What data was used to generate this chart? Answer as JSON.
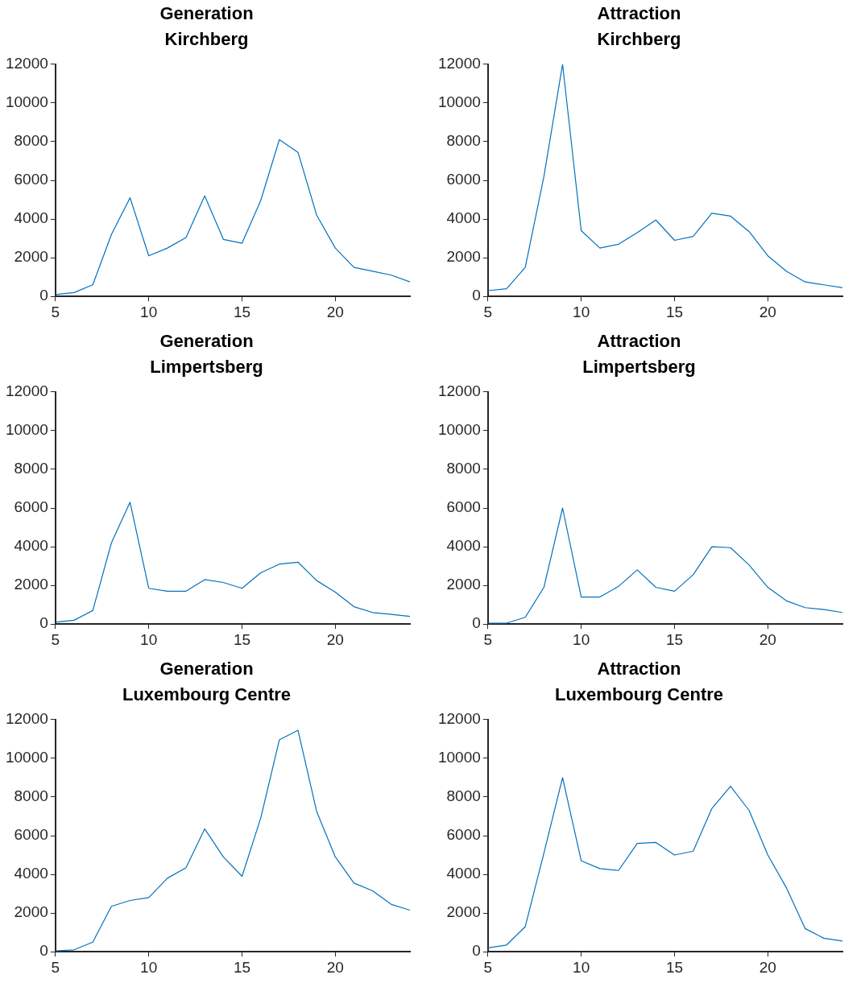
{
  "chart_data": [
    {
      "type": "line",
      "title": "Generation\nKirchberg",
      "x": [
        5,
        6,
        7,
        8,
        9,
        10,
        11,
        12,
        13,
        14,
        15,
        16,
        17,
        18,
        19,
        20,
        21,
        22,
        23,
        24
      ],
      "series": [
        {
          "color": "#0072bd",
          "values": [
            100,
            200,
            600,
            3200,
            5100,
            2100,
            2500,
            3050,
            5200,
            2950,
            2750,
            4950,
            8100,
            7450,
            4200,
            2500,
            1500,
            1300,
            1100,
            750
          ]
        }
      ],
      "xlim": [
        5,
        24
      ],
      "xticks": [
        5,
        10,
        15,
        20
      ],
      "ylim": [
        0,
        12000
      ],
      "yticks": [
        0,
        2000,
        4000,
        6000,
        8000,
        10000,
        12000
      ],
      "grid": false,
      "legend": false,
      "marker": "none",
      "line_style": "solid"
    },
    {
      "type": "line",
      "title": "Attraction\nKirchberg",
      "x": [
        5,
        6,
        7,
        8,
        9,
        10,
        11,
        12,
        13,
        14,
        15,
        16,
        17,
        18,
        19,
        20,
        21,
        22,
        23,
        24
      ],
      "series": [
        {
          "color": "#0072bd",
          "values": [
            300,
            400,
            1500,
            6200,
            12000,
            3400,
            2500,
            2700,
            3300,
            3950,
            2900,
            3100,
            4300,
            4150,
            3350,
            2100,
            1300,
            750,
            600,
            450
          ]
        }
      ],
      "xlim": [
        5,
        24
      ],
      "xticks": [
        5,
        10,
        15,
        20
      ],
      "ylim": [
        0,
        12000
      ],
      "yticks": [
        0,
        2000,
        4000,
        6000,
        8000,
        10000,
        12000
      ],
      "grid": false,
      "legend": false,
      "marker": "none",
      "line_style": "solid"
    },
    {
      "type": "line",
      "title": "Generation\nLimpertsberg",
      "x": [
        5,
        6,
        7,
        8,
        9,
        10,
        11,
        12,
        13,
        14,
        15,
        16,
        17,
        18,
        19,
        20,
        21,
        22,
        23,
        24
      ],
      "series": [
        {
          "color": "#0072bd",
          "values": [
            100,
            200,
            700,
            4200,
            6300,
            1850,
            1700,
            1700,
            2300,
            2150,
            1850,
            2650,
            3100,
            3200,
            2250,
            1650,
            900,
            600,
            500,
            400
          ]
        }
      ],
      "xlim": [
        5,
        24
      ],
      "xticks": [
        5,
        10,
        15,
        20
      ],
      "ylim": [
        0,
        12000
      ],
      "yticks": [
        0,
        2000,
        4000,
        6000,
        8000,
        10000,
        12000
      ],
      "grid": false,
      "legend": false,
      "marker": "none",
      "line_style": "solid"
    },
    {
      "type": "line",
      "title": "Attraction\nLimpertsberg",
      "x": [
        5,
        6,
        7,
        8,
        9,
        10,
        11,
        12,
        13,
        14,
        15,
        16,
        17,
        18,
        19,
        20,
        21,
        22,
        23,
        24
      ],
      "series": [
        {
          "color": "#0072bd",
          "values": [
            50,
            50,
            350,
            1900,
            6000,
            1400,
            1400,
            1950,
            2800,
            1900,
            1700,
            2550,
            4000,
            3950,
            3050,
            1900,
            1200,
            850,
            750,
            600
          ]
        }
      ],
      "xlim": [
        5,
        24
      ],
      "xticks": [
        5,
        10,
        15,
        20
      ],
      "ylim": [
        0,
        12000
      ],
      "yticks": [
        0,
        2000,
        4000,
        6000,
        8000,
        10000,
        12000
      ],
      "grid": false,
      "legend": false,
      "marker": "none",
      "line_style": "solid"
    },
    {
      "type": "line",
      "title": "Generation\nLuxembourg Centre",
      "x": [
        5,
        6,
        7,
        8,
        9,
        10,
        11,
        12,
        13,
        14,
        15,
        16,
        17,
        18,
        19,
        20,
        21,
        22,
        23,
        24
      ],
      "series": [
        {
          "color": "#0072bd",
          "values": [
            50,
            100,
            500,
            2350,
            2650,
            2800,
            3800,
            4350,
            6350,
            4900,
            3900,
            6900,
            10950,
            11450,
            7250,
            4900,
            3550,
            3150,
            2450,
            2150
          ]
        }
      ],
      "xlim": [
        5,
        24
      ],
      "xticks": [
        5,
        10,
        15,
        20
      ],
      "ylim": [
        0,
        12000
      ],
      "yticks": [
        0,
        2000,
        4000,
        6000,
        8000,
        10000,
        12000
      ],
      "grid": false,
      "legend": false,
      "marker": "none",
      "line_style": "solid"
    },
    {
      "type": "line",
      "title": "Attraction\nLuxembourg Centre",
      "x": [
        5,
        6,
        7,
        8,
        9,
        10,
        11,
        12,
        13,
        14,
        15,
        16,
        17,
        18,
        19,
        20,
        21,
        22,
        23,
        24
      ],
      "series": [
        {
          "color": "#0072bd",
          "values": [
            200,
            350,
            1300,
            5100,
            9000,
            4700,
            4300,
            4200,
            5600,
            5650,
            5000,
            5200,
            7400,
            8550,
            7300,
            5000,
            3300,
            1200,
            700,
            550
          ]
        }
      ],
      "xlim": [
        5,
        24
      ],
      "xticks": [
        5,
        10,
        15,
        20
      ],
      "ylim": [
        0,
        12000
      ],
      "yticks": [
        0,
        2000,
        4000,
        6000,
        8000,
        10000,
        12000
      ],
      "grid": false,
      "legend": false,
      "marker": "none",
      "line_style": "solid"
    }
  ]
}
